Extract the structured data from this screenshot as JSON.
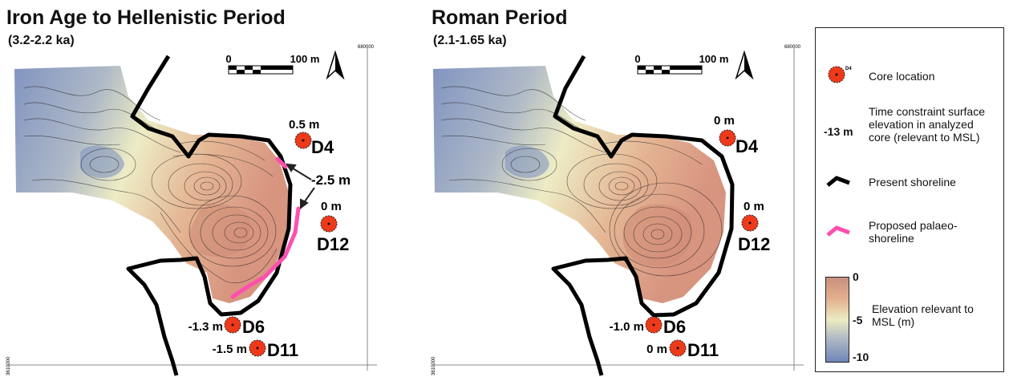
{
  "panels": [
    {
      "title": "Iron Age to Hellenistic Period",
      "subtitle": "(3.2-2.2 ka)",
      "scale": {
        "zero": "0",
        "label": "100 m"
      },
      "coord_top": "680000",
      "coord_left": "3610000",
      "cores": [
        {
          "id": "D4",
          "elevation": "0.5 m"
        },
        {
          "id": "D12",
          "elevation": "0 m"
        },
        {
          "id": "D6",
          "elevation": "-1.3 m"
        },
        {
          "id": "D11",
          "elevation": "-1.5 m"
        }
      ],
      "palaeo_label": "-2.5 m"
    },
    {
      "title": "Roman Period",
      "subtitle": "(2.1-1.65 ka)",
      "scale": {
        "zero": "0",
        "label": "100 m"
      },
      "coord_top": "680000",
      "coord_left": "3610000",
      "cores": [
        {
          "id": "D4",
          "elevation": "0 m"
        },
        {
          "id": "D12",
          "elevation": "0 m"
        },
        {
          "id": "D6",
          "elevation": "-1.0 m"
        },
        {
          "id": "D11",
          "elevation": "0 m"
        }
      ]
    }
  ],
  "legend": {
    "core_symbol_label": "D4",
    "core_location": "Core location",
    "time_value": "-13 m",
    "time_constraint": "Time constraint surface elevation in analyzed core (relevant to MSL)",
    "present_shoreline": "Present shoreline",
    "palaeo_shoreline": "Proposed palaeo-shoreline",
    "ramp_top": "0",
    "ramp_mid": "-5",
    "ramp_bottom": "-10",
    "ramp_label": "Elevation relevant to MSL (m)"
  },
  "colors": {
    "deep": "#6f86b8",
    "mid": "#e8e3b8",
    "shallow": "#d9987a",
    "core_fill": "#ee3a1a",
    "palaeo": "#ff4fae",
    "shoreline": "#000000"
  }
}
